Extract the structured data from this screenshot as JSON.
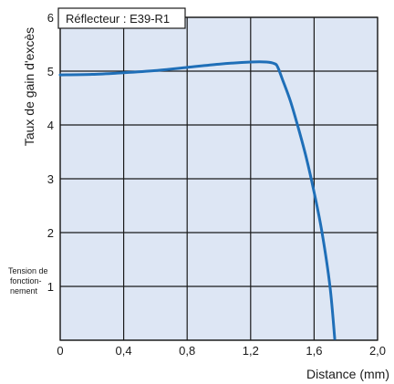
{
  "chart_data": {
    "type": "line",
    "legend_box": "Réflecteur : E39-R1",
    "legend_placement": "top-left",
    "xlabel": "Distance (mm)",
    "ylabel": "Taux de gain d'excès",
    "operating_level": {
      "y": 1,
      "label_lines": [
        "Tension de",
        "fonction-",
        "nement"
      ]
    },
    "xlim": [
      0,
      2.0
    ],
    "ylim": [
      0,
      6
    ],
    "x_ticks": [
      0,
      0.4,
      0.8,
      1.2,
      1.6,
      2.0
    ],
    "x_tick_labels": [
      "0",
      "0,4",
      "0,8",
      "1,2",
      "1,6",
      "2,0"
    ],
    "y_ticks": [
      0,
      1,
      2,
      3,
      4,
      5,
      6
    ],
    "y_tick_labels": [
      "",
      "1",
      "2",
      "3",
      "4",
      "5",
      "6"
    ],
    "grid": true,
    "colors": {
      "series": "#1f6fb8",
      "plot_background": "#dde6f4",
      "grid": "#1a1a1a"
    },
    "series": [
      {
        "x": [
          0,
          0.2,
          0.4,
          0.6,
          0.8,
          1.0,
          1.2,
          1.3,
          1.35,
          1.37,
          1.4,
          1.45,
          1.5,
          1.55,
          1.6,
          1.65,
          1.7,
          1.73
        ],
        "y": [
          4.93,
          4.94,
          4.97,
          5.01,
          5.07,
          5.13,
          5.17,
          5.17,
          5.14,
          5.08,
          4.85,
          4.45,
          3.95,
          3.4,
          2.75,
          2.0,
          1.0,
          0.03
        ]
      }
    ]
  }
}
